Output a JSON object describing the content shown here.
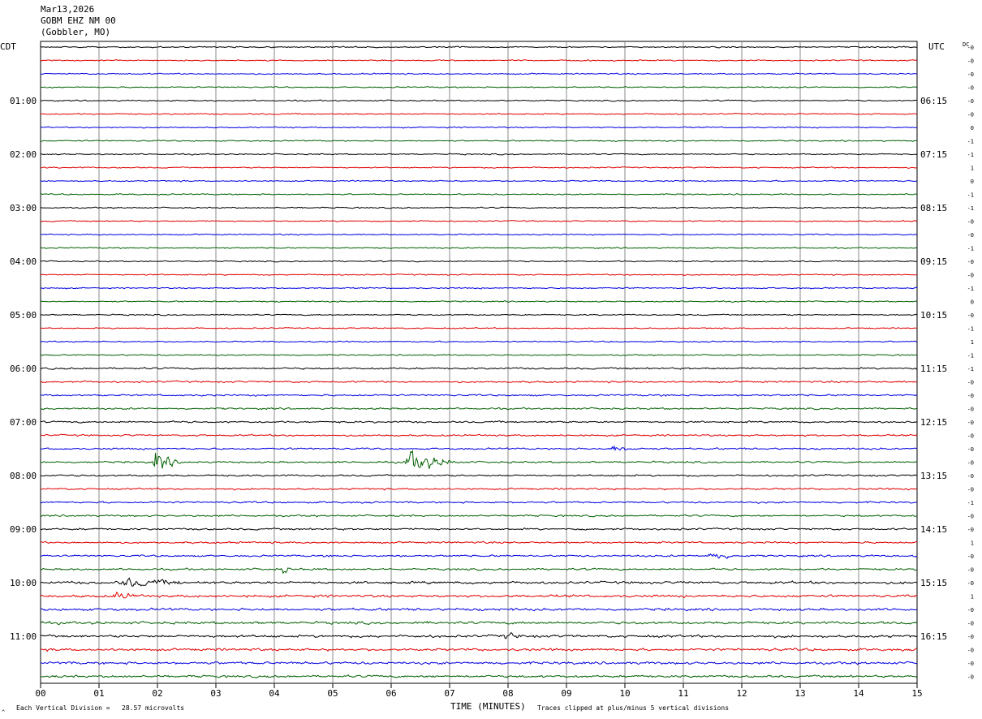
{
  "header": {
    "date": "Mar13,2026",
    "station": "GOBM EHZ NM 00",
    "location": "(Gobbler, MO)"
  },
  "left_axis_label": "CDT",
  "right_axis_label": "UTC",
  "dc_label": "DC",
  "x_axis_title": "TIME (MINUTES)",
  "footer": {
    "scale_note": "Each Vertical Division =   28.57 microvolts",
    "clip_note": "Traces clipped at plus/minus 5 vertical divisions",
    "logo_mark": "^"
  },
  "trace_colors": [
    "#000000",
    "#e00000",
    "#0000e0",
    "#006000"
  ],
  "chart_data": {
    "type": "line",
    "title": "",
    "xlabel": "TIME (MINUTES)",
    "ylabel": "",
    "xlim": [
      0,
      15
    ],
    "x_ticks": [
      "00",
      "01",
      "02",
      "03",
      "04",
      "05",
      "06",
      "07",
      "08",
      "09",
      "10",
      "11",
      "12",
      "13",
      "14",
      "15"
    ],
    "trace_count": 48,
    "minutes_per_trace": 15,
    "left_hour_labels": [
      {
        "trace": 4,
        "label": "01:00"
      },
      {
        "trace": 8,
        "label": "02:00"
      },
      {
        "trace": 12,
        "label": "03:00"
      },
      {
        "trace": 16,
        "label": "04:00"
      },
      {
        "trace": 20,
        "label": "05:00"
      },
      {
        "trace": 24,
        "label": "06:00"
      },
      {
        "trace": 28,
        "label": "07:00"
      },
      {
        "trace": 32,
        "label": "08:00"
      },
      {
        "trace": 36,
        "label": "09:00"
      },
      {
        "trace": 40,
        "label": "10:00"
      },
      {
        "trace": 44,
        "label": "11:00"
      }
    ],
    "right_hour_labels": [
      {
        "trace": 4,
        "label": "06:15"
      },
      {
        "trace": 8,
        "label": "07:15"
      },
      {
        "trace": 12,
        "label": "08:15"
      },
      {
        "trace": 16,
        "label": "09:15"
      },
      {
        "trace": 20,
        "label": "10:15"
      },
      {
        "trace": 24,
        "label": "11:15"
      },
      {
        "trace": 28,
        "label": "12:15"
      },
      {
        "trace": 32,
        "label": "13:15"
      },
      {
        "trace": 36,
        "label": "14:15"
      },
      {
        "trace": 40,
        "label": "15:15"
      },
      {
        "trace": 44,
        "label": "16:15"
      }
    ],
    "dc_offsets": [
      "-0",
      "-0",
      "-0",
      "-0",
      "-0",
      "-0",
      "0",
      "-1",
      "-1",
      "1",
      "0",
      "-1",
      "-1",
      "-0",
      "-0",
      "-1",
      "-0",
      "-0",
      "-1",
      "0",
      "-0",
      "-1",
      "1",
      "-1",
      "-1",
      "-0",
      "-0",
      "-0",
      "-0",
      "-0",
      "-0",
      "-0",
      "-0",
      "-0",
      "-1",
      "-0",
      "-0",
      "1",
      "-0",
      "-0",
      "-0",
      "1",
      "-0",
      "-0",
      "-0",
      "-0",
      "-0",
      "-0"
    ],
    "noise_level": [
      1,
      1,
      1,
      1,
      1,
      1,
      1,
      1,
      1,
      1,
      1,
      1,
      1,
      1,
      1,
      1,
      1,
      1,
      1,
      1,
      1,
      1,
      1,
      1,
      1.4,
      1.4,
      1.4,
      1.4,
      1.4,
      1.4,
      1.4,
      1.4,
      1.4,
      1.4,
      1.4,
      1.4,
      1.5,
      1.5,
      1.5,
      1.5,
      2,
      2,
      2,
      2,
      2,
      2,
      2,
      1.8
    ],
    "events": [
      {
        "trace": 30,
        "start_min": 9.65,
        "duration_min": 0.9,
        "amplitude_div": 1.5
      },
      {
        "trace": 31,
        "start_min": 1.9,
        "duration_min": 0.5,
        "amplitude_div": 5
      },
      {
        "trace": 31,
        "start_min": 6.2,
        "duration_min": 0.95,
        "amplitude_div": 5
      },
      {
        "trace": 38,
        "start_min": 11.4,
        "duration_min": 0.6,
        "amplitude_div": 2.5
      },
      {
        "trace": 39,
        "start_min": 4.1,
        "duration_min": 0.3,
        "amplitude_div": 2
      },
      {
        "trace": 40,
        "start_min": 1.2,
        "duration_min": 2.0,
        "amplitude_div": 2
      },
      {
        "trace": 41,
        "start_min": 1.2,
        "duration_min": 0.7,
        "amplitude_div": 2
      },
      {
        "trace": 44,
        "start_min": 7.9,
        "duration_min": 0.5,
        "amplitude_div": 2
      }
    ]
  }
}
